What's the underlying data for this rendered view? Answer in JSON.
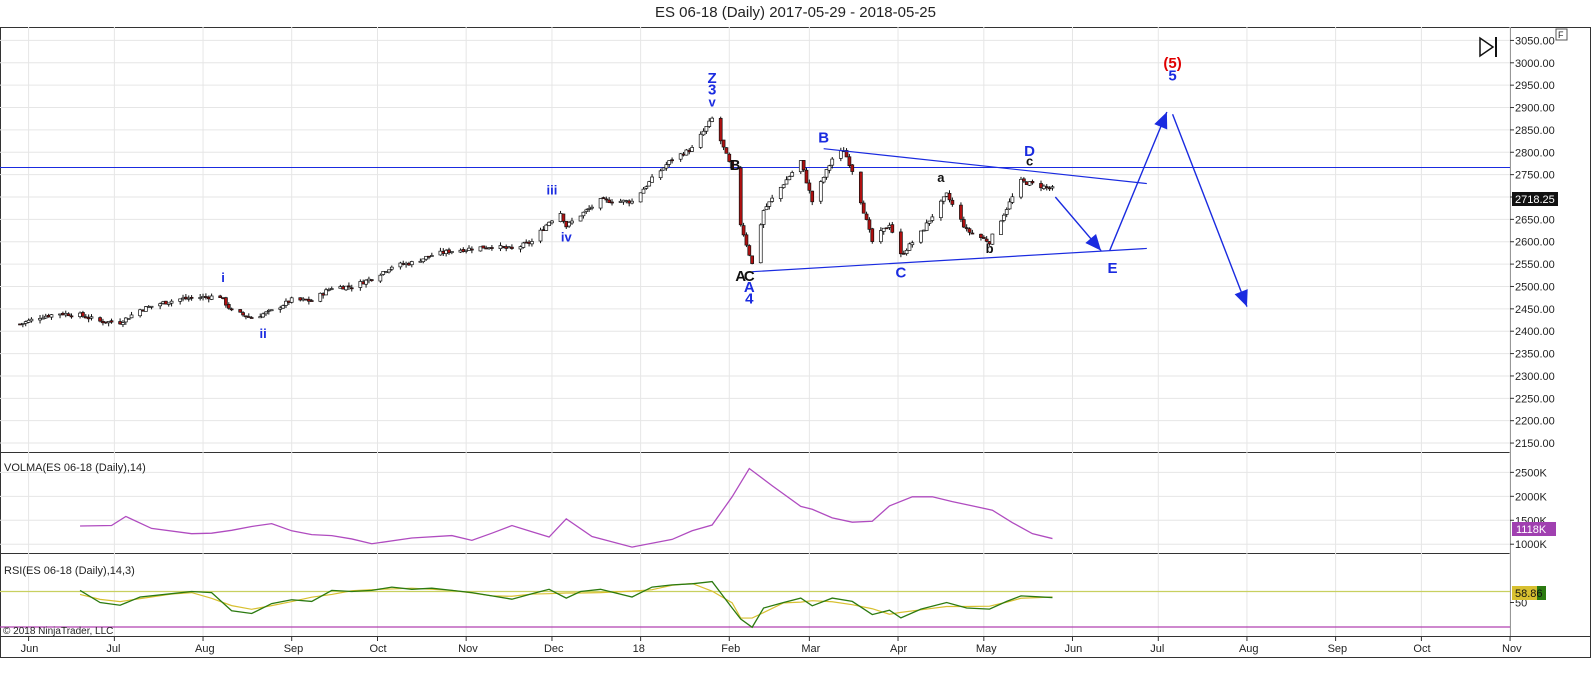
{
  "title": "ES 06-18 (Daily)  2017-05-29 - 2018-05-25",
  "copyright": "© 2018 NinjaTrader, LLC",
  "corner_flag": "F",
  "price_tag": "2718.25",
  "volma_label": "VOLMA(ES 06-18 (Daily),14)",
  "volma_tag": "1118K",
  "rsi_label": "RSI(ES 06-18 (Daily),14,3)",
  "rsi_tag": "58.86",
  "colors": {
    "wave_blue": "#1a2be0",
    "wave_black": "#111111",
    "wave_red": "#e00000",
    "volma": "#b04cc0",
    "rsi": "#2b7a10",
    "rsi_signal": "#d8c030",
    "rsi_level": "#c8d060",
    "rsi_bottom": "#b040b0",
    "candle_up": "#ffffff",
    "candle_down": "#b01010",
    "grid": "#e6e6e6"
  },
  "chart_data": [
    {
      "type": "candlestick",
      "panel": "price",
      "title": "ES 06-18 (Daily)  2017-05-29 - 2018-05-25",
      "x_ticks": [
        "Jun",
        "Jul",
        "Aug",
        "Sep",
        "Oct",
        "Nov",
        "Dec",
        "18",
        "Feb",
        "Mar",
        "Apr",
        "May",
        "Jun",
        "Jul",
        "Aug",
        "Sep",
        "Oct",
        "Nov"
      ],
      "y_ticks": [
        "3050.00",
        "3000.00",
        "2950.00",
        "2900.00",
        "2850.00",
        "2800.00",
        "2750.00",
        "2700.00",
        "2650.00",
        "2600.00",
        "2550.00",
        "2500.00",
        "2450.00",
        "2400.00",
        "2350.00",
        "2300.00",
        "2250.00",
        "2200.00",
        "2150.00"
      ],
      "ylim": [
        2130,
        3080
      ],
      "last_close": 2718.25,
      "horizontal_line": 2766,
      "close_anchors": [
        [
          "2017-05-29",
          2416
        ],
        [
          "2017-06-05",
          2432
        ],
        [
          "2017-06-12",
          2440
        ],
        [
          "2017-06-19",
          2436
        ],
        [
          "2017-06-26",
          2422
        ],
        [
          "2017-07-03",
          2420
        ],
        [
          "2017-07-10",
          2448
        ],
        [
          "2017-07-17",
          2462
        ],
        [
          "2017-07-24",
          2472
        ],
        [
          "2017-07-31",
          2476
        ],
        [
          "2017-08-07",
          2478
        ],
        [
          "2017-08-11",
          2445
        ],
        [
          "2017-08-18",
          2430
        ],
        [
          "2017-08-25",
          2445
        ],
        [
          "2017-09-01",
          2470
        ],
        [
          "2017-09-08",
          2468
        ],
        [
          "2017-09-15",
          2498
        ],
        [
          "2017-09-22",
          2500
        ],
        [
          "2017-09-29",
          2518
        ],
        [
          "2017-10-06",
          2545
        ],
        [
          "2017-10-13",
          2553
        ],
        [
          "2017-10-20",
          2570
        ],
        [
          "2017-10-27",
          2580
        ],
        [
          "2017-11-03",
          2585
        ],
        [
          "2017-11-10",
          2590
        ],
        [
          "2017-11-17",
          2583
        ],
        [
          "2017-11-24",
          2600
        ],
        [
          "2017-11-30",
          2645
        ],
        [
          "2017-12-04",
          2665
        ],
        [
          "2017-12-06",
          2635
        ],
        [
          "2017-12-11",
          2660
        ],
        [
          "2017-12-18",
          2692
        ],
        [
          "2017-12-29",
          2690
        ],
        [
          "2018-01-05",
          2740
        ],
        [
          "2018-01-12",
          2785
        ],
        [
          "2018-01-19",
          2808
        ],
        [
          "2018-01-26",
          2875
        ],
        [
          "2018-02-02",
          2760
        ],
        [
          "2018-02-05",
          2640
        ],
        [
          "2018-02-09",
          2550
        ],
        [
          "2018-02-13",
          2670
        ],
        [
          "2018-02-20",
          2730
        ],
        [
          "2018-02-26",
          2780
        ],
        [
          "2018-03-02",
          2690
        ],
        [
          "2018-03-09",
          2785
        ],
        [
          "2018-03-13",
          2805
        ],
        [
          "2018-03-16",
          2760
        ],
        [
          "2018-03-23",
          2600
        ],
        [
          "2018-03-29",
          2640
        ],
        [
          "2018-04-02",
          2570
        ],
        [
          "2018-04-09",
          2620
        ],
        [
          "2018-04-18",
          2705
        ],
        [
          "2018-04-25",
          2625
        ],
        [
          "2018-05-03",
          2600
        ],
        [
          "2018-05-09",
          2675
        ],
        [
          "2018-05-14",
          2735
        ],
        [
          "2018-05-25",
          2718.25
        ]
      ],
      "trendlines": [
        {
          "from": [
            "2018-03-06",
            2808
          ],
          "to": [
            "2018-06-27",
            2730
          ]
        },
        {
          "from": [
            "2018-02-09",
            2533
          ],
          "to": [
            "2018-06-27",
            2585
          ]
        }
      ],
      "projection_arrows": [
        {
          "from": [
            "2018-05-26",
            2700
          ],
          "to": [
            "2018-06-11",
            2580
          ]
        },
        {
          "from": [
            "2018-06-14",
            2580
          ],
          "to": [
            "2018-07-04",
            2890
          ]
        },
        {
          "from": [
            "2018-07-06",
            2885
          ],
          "to": [
            "2018-08-01",
            2455
          ]
        }
      ],
      "annotations": [
        {
          "text": "i",
          "date": "2017-08-08",
          "price": 2510,
          "color": "blue"
        },
        {
          "text": "ii",
          "date": "2017-08-22",
          "price": 2385,
          "color": "blue"
        },
        {
          "text": "iii",
          "date": "2017-12-01",
          "price": 2706,
          "color": "blue"
        },
        {
          "text": "iv",
          "date": "2017-12-06",
          "price": 2600,
          "color": "blue"
        },
        {
          "text": "Z",
          "date": "2018-01-26",
          "price": 2955,
          "color": "blue"
        },
        {
          "text": "3",
          "date": "2018-01-26",
          "price": 2929,
          "color": "blue"
        },
        {
          "text": "v",
          "date": "2018-01-26",
          "price": 2902,
          "color": "blue"
        },
        {
          "text": "B",
          "date": "2018-02-03",
          "price": 2760,
          "color": "black"
        },
        {
          "text": "A",
          "date": "2018-02-05",
          "price": 2512,
          "color": "black"
        },
        {
          "text": "C",
          "date": "2018-02-08",
          "price": 2512,
          "color": "black"
        },
        {
          "text": "A",
          "date": "2018-02-08",
          "price": 2488,
          "color": "blue"
        },
        {
          "text": "4",
          "date": "2018-02-08",
          "price": 2462,
          "color": "blue"
        },
        {
          "text": "B",
          "date": "2018-03-06",
          "price": 2822,
          "color": "blue"
        },
        {
          "text": "C",
          "date": "2018-04-02",
          "price": 2520,
          "color": "blue"
        },
        {
          "text": "a",
          "date": "2018-04-16",
          "price": 2733,
          "color": "black"
        },
        {
          "text": "b",
          "date": "2018-05-03",
          "price": 2575,
          "color": "black"
        },
        {
          "text": "D",
          "date": "2018-05-17",
          "price": 2792,
          "color": "blue"
        },
        {
          "text": "c",
          "date": "2018-05-17",
          "price": 2770,
          "color": "black"
        },
        {
          "text": "E",
          "date": "2018-06-15",
          "price": 2530,
          "color": "blue"
        },
        {
          "text": "(5)",
          "date": "2018-07-06",
          "price": 2988,
          "color": "red"
        },
        {
          "text": "5",
          "date": "2018-07-06",
          "price": 2960,
          "color": "blue"
        }
      ]
    },
    {
      "type": "line",
      "panel": "volma",
      "title": "VOLMA(ES 06-18 (Daily),14)",
      "y_ticks": [
        "2500K",
        "2000K",
        "1500K",
        "1000K"
      ],
      "ylim": [
        900,
        2800
      ],
      "last_value": 1118,
      "series": [
        {
          "values": [
            [
              "2017-06-19",
              1380
            ],
            [
              "2017-06-30",
              1390
            ],
            [
              "2017-07-05",
              1580
            ],
            [
              "2017-07-14",
              1330
            ],
            [
              "2017-07-28",
              1220
            ],
            [
              "2017-08-04",
              1230
            ],
            [
              "2017-08-11",
              1290
            ],
            [
              "2017-08-18",
              1370
            ],
            [
              "2017-08-25",
              1430
            ],
            [
              "2017-09-01",
              1280
            ],
            [
              "2017-09-08",
              1200
            ],
            [
              "2017-09-15",
              1180
            ],
            [
              "2017-09-22",
              1110
            ],
            [
              "2017-09-29",
              1010
            ],
            [
              "2017-10-13",
              1130
            ],
            [
              "2017-10-27",
              1180
            ],
            [
              "2017-11-03",
              1080
            ],
            [
              "2017-11-10",
              1230
            ],
            [
              "2017-11-17",
              1390
            ],
            [
              "2017-11-24",
              1260
            ],
            [
              "2017-11-30",
              1150
            ],
            [
              "2017-12-06",
              1530
            ],
            [
              "2017-12-15",
              1160
            ],
            [
              "2017-12-29",
              940
            ],
            [
              "2018-01-12",
              1100
            ],
            [
              "2018-01-19",
              1280
            ],
            [
              "2018-01-26",
              1400
            ],
            [
              "2018-02-02",
              1990
            ],
            [
              "2018-02-08",
              2580
            ],
            [
              "2018-02-16",
              2220
            ],
            [
              "2018-02-26",
              1790
            ],
            [
              "2018-03-02",
              1730
            ],
            [
              "2018-03-09",
              1550
            ],
            [
              "2018-03-16",
              1460
            ],
            [
              "2018-03-23",
              1480
            ],
            [
              "2018-03-29",
              1800
            ],
            [
              "2018-04-06",
              1990
            ],
            [
              "2018-04-13",
              1990
            ],
            [
              "2018-04-20",
              1890
            ],
            [
              "2018-04-27",
              1800
            ],
            [
              "2018-05-04",
              1710
            ],
            [
              "2018-05-11",
              1450
            ],
            [
              "2018-05-18",
              1220
            ],
            [
              "2018-05-25",
              1118
            ]
          ]
        }
      ]
    },
    {
      "type": "line",
      "panel": "rsi",
      "title": "RSI(ES 06-18 (Daily),14,3)",
      "y_ticks": [
        "50"
      ],
      "ylim": [
        0,
        100
      ],
      "levels": [
        70,
        0
      ],
      "last_value": 58.86,
      "series": [
        {
          "values": [
            [
              "2017-06-19",
              72
            ],
            [
              "2017-06-26",
              50
            ],
            [
              "2017-07-03",
              45
            ],
            [
              "2017-07-10",
              60
            ],
            [
              "2017-07-21",
              66
            ],
            [
              "2017-07-28",
              70
            ],
            [
              "2017-08-04",
              68
            ],
            [
              "2017-08-11",
              35
            ],
            [
              "2017-08-18",
              30
            ],
            [
              "2017-08-25",
              48
            ],
            [
              "2017-09-01",
              55
            ],
            [
              "2017-09-08",
              52
            ],
            [
              "2017-09-15",
              72
            ],
            [
              "2017-09-22",
              70
            ],
            [
              "2017-09-29",
              72
            ],
            [
              "2017-10-06",
              78
            ],
            [
              "2017-10-13",
              74
            ],
            [
              "2017-10-20",
              76
            ],
            [
              "2017-10-27",
              72
            ],
            [
              "2017-11-03",
              68
            ],
            [
              "2017-11-10",
              62
            ],
            [
              "2017-11-17",
              56
            ],
            [
              "2017-11-24",
              66
            ],
            [
              "2017-11-30",
              74
            ],
            [
              "2017-12-06",
              58
            ],
            [
              "2017-12-11",
              70
            ],
            [
              "2017-12-18",
              74
            ],
            [
              "2017-12-29",
              60
            ],
            [
              "2018-01-05",
              78
            ],
            [
              "2018-01-12",
              82
            ],
            [
              "2018-01-19",
              84
            ],
            [
              "2018-01-26",
              88
            ],
            [
              "2018-02-02",
              40
            ],
            [
              "2018-02-05",
              20
            ],
            [
              "2018-02-09",
              5
            ],
            [
              "2018-02-13",
              40
            ],
            [
              "2018-02-20",
              50
            ],
            [
              "2018-02-26",
              58
            ],
            [
              "2018-03-02",
              44
            ],
            [
              "2018-03-09",
              58
            ],
            [
              "2018-03-16",
              52
            ],
            [
              "2018-03-23",
              28
            ],
            [
              "2018-03-29",
              36
            ],
            [
              "2018-04-02",
              22
            ],
            [
              "2018-04-09",
              38
            ],
            [
              "2018-04-18",
              50
            ],
            [
              "2018-04-25",
              40
            ],
            [
              "2018-05-03",
              38
            ],
            [
              "2018-05-09",
              52
            ],
            [
              "2018-05-14",
              62
            ],
            [
              "2018-05-25",
              59
            ]
          ]
        }
      ]
    }
  ]
}
